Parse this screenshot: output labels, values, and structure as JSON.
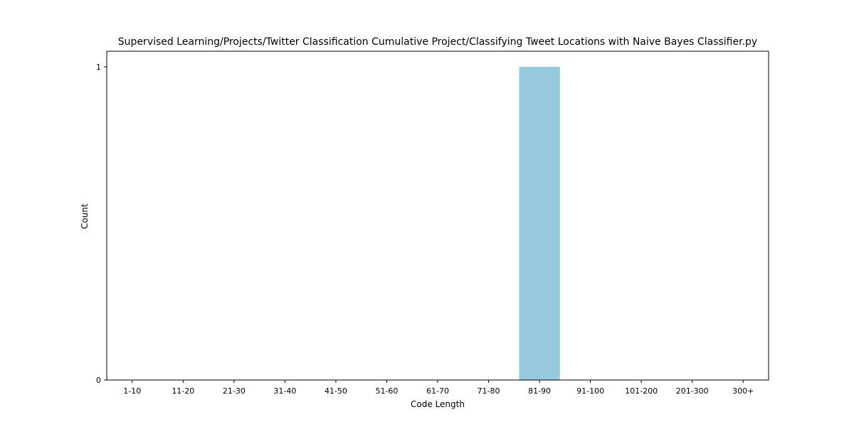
{
  "chart_data": {
    "type": "bar",
    "title": "Supervised Learning/Projects/Twitter Classification Cumulative Project/Classifying Tweet Locations with Naive Bayes Classifier.py",
    "xlabel": "Code Length",
    "ylabel": "Count",
    "categories": [
      "1-10",
      "11-20",
      "21-30",
      "31-40",
      "41-50",
      "51-60",
      "61-70",
      "71-80",
      "81-90",
      "91-100",
      "101-200",
      "201-300",
      "300+"
    ],
    "values": [
      0,
      0,
      0,
      0,
      0,
      0,
      0,
      0,
      1,
      0,
      0,
      0,
      0
    ],
    "ylim": [
      0,
      1.05
    ],
    "yticks": [
      0,
      1
    ],
    "grid": false,
    "colors": {
      "bar": "#96c9dd",
      "axis": "#000000",
      "background": "#ffffff"
    }
  }
}
